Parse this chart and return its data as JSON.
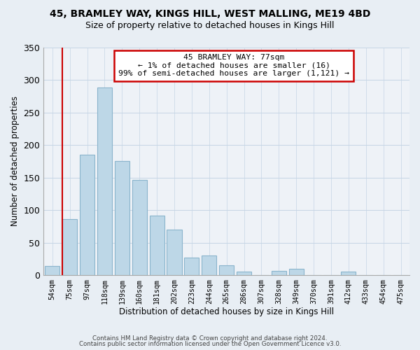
{
  "title1": "45, BRAMLEY WAY, KINGS HILL, WEST MALLING, ME19 4BD",
  "title2": "Size of property relative to detached houses in Kings Hill",
  "xlabel": "Distribution of detached houses by size in Kings Hill",
  "ylabel": "Number of detached properties",
  "bar_labels": [
    "54sqm",
    "75sqm",
    "97sqm",
    "118sqm",
    "139sqm",
    "160sqm",
    "181sqm",
    "202sqm",
    "223sqm",
    "244sqm",
    "265sqm",
    "286sqm",
    "307sqm",
    "328sqm",
    "349sqm",
    "370sqm",
    "391sqm",
    "412sqm",
    "433sqm",
    "454sqm",
    "475sqm"
  ],
  "bar_values": [
    14,
    86,
    185,
    288,
    175,
    146,
    91,
    70,
    27,
    30,
    15,
    5,
    0,
    7,
    10,
    0,
    0,
    5,
    0,
    0,
    0
  ],
  "bar_color": "#bdd7e7",
  "bar_edge_color": "#8ab4cc",
  "vline_x": 1,
  "vline_color": "#cc0000",
  "annotation_line1": "45 BRAMLEY WAY: 77sqm",
  "annotation_line2": "← 1% of detached houses are smaller (16)",
  "annotation_line3": "99% of semi-detached houses are larger (1,121) →",
  "annotation_box_color": "white",
  "annotation_box_edge_color": "#cc0000",
  "ylim": [
    0,
    350
  ],
  "yticks": [
    0,
    50,
    100,
    150,
    200,
    250,
    300,
    350
  ],
  "footer1": "Contains HM Land Registry data © Crown copyright and database right 2024.",
  "footer2": "Contains public sector information licensed under the Open Government Licence v3.0.",
  "bg_color": "#e8eef4",
  "plot_bg_color": "#eef2f7"
}
